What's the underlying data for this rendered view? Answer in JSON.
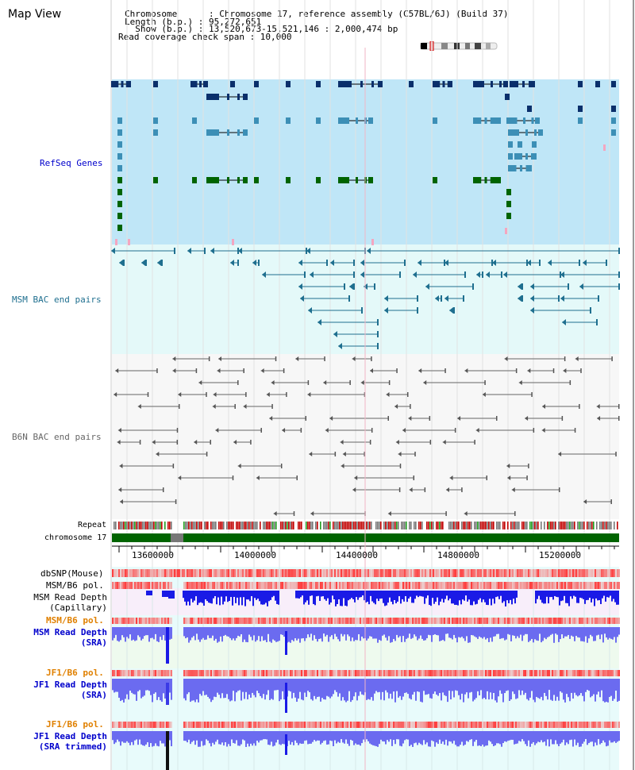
{
  "title": "Map View",
  "info": {
    "chromosome": "Chromosome      : Chromosome 17, reference assembly (C57BL/6J) (Build 37)",
    "length": "Length (b.p.) : 95,272,651",
    "show": "  Show (b.p.) : 13,520,673-15,521,146 : 2,000,474 bp",
    "coverage": "Read coverage check span : 10,000"
  },
  "tracks": {
    "refseq": "RefSeq Genes",
    "msm_bac": "MSM BAC end pairs",
    "b6n_bac": "B6N BAC end pairs",
    "repeat": "Repeat",
    "chromosome": "chromosome 17",
    "dbsnp": "dbSNP(Mouse)",
    "msm_b6_pol_1": "MSM/B6 pol.",
    "msm_depth_cap_1": "MSM Read Depth",
    "msm_depth_cap_2": "(Capillary)",
    "msm_b6_pol_2": "MSM/B6 pol.",
    "msm_depth_sra_1": "MSM Read Depth",
    "msm_depth_sra_2": "(SRA)",
    "jf1_b6_pol_1": "JF1/B6 pol.",
    "jf1_depth_sra_1": "JF1 Read Depth",
    "jf1_depth_sra_2": "(SRA)",
    "jf1_b6_pol_2": "JF1/B6 pol.",
    "jf1_depth_trim_1": "JF1 Read Depth",
    "jf1_depth_trim_2": "(SRA trimmed)"
  },
  "axis_ticks": [
    "13600000",
    "14000000",
    "14400000",
    "14800000",
    "15200000"
  ],
  "colors": {
    "refseq_bg": "#bfe6f7",
    "bac_bg": "#e4f9f9",
    "b6n_bg": "#f7f7f7",
    "chromosome": "#006400",
    "label_blue": "#0000cc",
    "label_orange": "#e08000",
    "label_teal": "#1f6f8f",
    "label_gray": "#666666"
  }
}
